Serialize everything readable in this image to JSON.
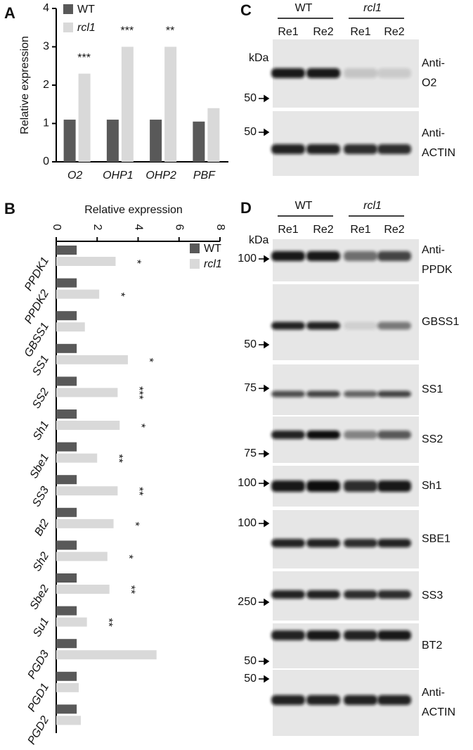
{
  "chart_data": [
    {
      "type": "bar",
      "panel": "A",
      "ylabel": "Relative expression",
      "categories": [
        "O2",
        "OHP1",
        "OHP2",
        "PBF"
      ],
      "series": [
        {
          "name": "WT",
          "color": "#595959",
          "values": [
            1.1,
            1.1,
            1.1,
            1.05
          ]
        },
        {
          "name": "rcl1",
          "color": "#d9d9d9",
          "values": [
            2.3,
            3.0,
            3.0,
            1.4
          ],
          "significance": [
            "***",
            "***",
            "**",
            null
          ]
        }
      ],
      "ylim": [
        0,
        4
      ],
      "yticks": [
        0,
        1,
        2,
        3,
        4
      ],
      "legend": "upper left"
    },
    {
      "type": "barh",
      "panel": "B",
      "xlabel": "Relative expression",
      "categories": [
        "PPDK1",
        "PPDK2",
        "GBSS1",
        "SS1",
        "SS2",
        "Sh1",
        "Sbe1",
        "SS3",
        "Bt2",
        "Sh2",
        "Sbe2",
        "Su1",
        "PGD3",
        "PGD1",
        "PGD2"
      ],
      "series": [
        {
          "name": "WT",
          "color": "#595959",
          "values": [
            1.0,
            1.0,
            1.0,
            1.0,
            1.0,
            1.0,
            1.0,
            1.0,
            1.0,
            1.0,
            1.0,
            1.0,
            1.0,
            1.0,
            1.0
          ]
        },
        {
          "name": "rcl1",
          "color": "#d9d9d9",
          "values": [
            2.9,
            2.1,
            1.4,
            3.5,
            3.0,
            3.1,
            2.0,
            3.0,
            2.8,
            2.5,
            2.6,
            1.5,
            4.9,
            1.1,
            1.2
          ],
          "significance": [
            "*",
            "*",
            null,
            "*",
            "***",
            "*",
            "**",
            "**",
            "*",
            "*",
            "**",
            "**",
            null,
            null,
            null
          ]
        }
      ],
      "xlim": [
        0,
        8
      ],
      "xticks": [
        0,
        2,
        4,
        6,
        8
      ],
      "legend": "upper right"
    }
  ],
  "panel_c": {
    "letter": "C",
    "groups": [
      "WT",
      "rcl1"
    ],
    "lanes": [
      "Re1",
      "Re2",
      "Re1",
      "Re2"
    ],
    "kda": "kDa",
    "blots": [
      {
        "marker": "50",
        "label": [
          "Anti-",
          "O2"
        ]
      },
      {
        "marker": "50",
        "label": [
          "Anti-",
          "ACTIN"
        ]
      }
    ]
  },
  "panel_d": {
    "letter": "D",
    "groups": [
      "WT",
      "rcl1"
    ],
    "lanes": [
      "Re1",
      "Re2",
      "Re1",
      "Re2"
    ],
    "kda": "kDa",
    "blots": [
      {
        "marker": "100",
        "label": [
          "Anti-",
          "PPDK"
        ]
      },
      {
        "marker": "50",
        "label": [
          "GBSS1"
        ]
      },
      {
        "marker": "75",
        "label": [
          "SS1"
        ]
      },
      {
        "marker": "75",
        "label": [
          "SS2"
        ]
      },
      {
        "marker": "100",
        "label": [
          "Sh1"
        ]
      },
      {
        "marker": "100",
        "label": [
          "SBE1"
        ]
      },
      {
        "marker": "250",
        "label": [
          "SS3"
        ]
      },
      {
        "marker": "50",
        "label": [
          "BT2"
        ]
      },
      {
        "marker": "50",
        "label": [
          "Anti-",
          "ACTIN"
        ]
      }
    ]
  }
}
